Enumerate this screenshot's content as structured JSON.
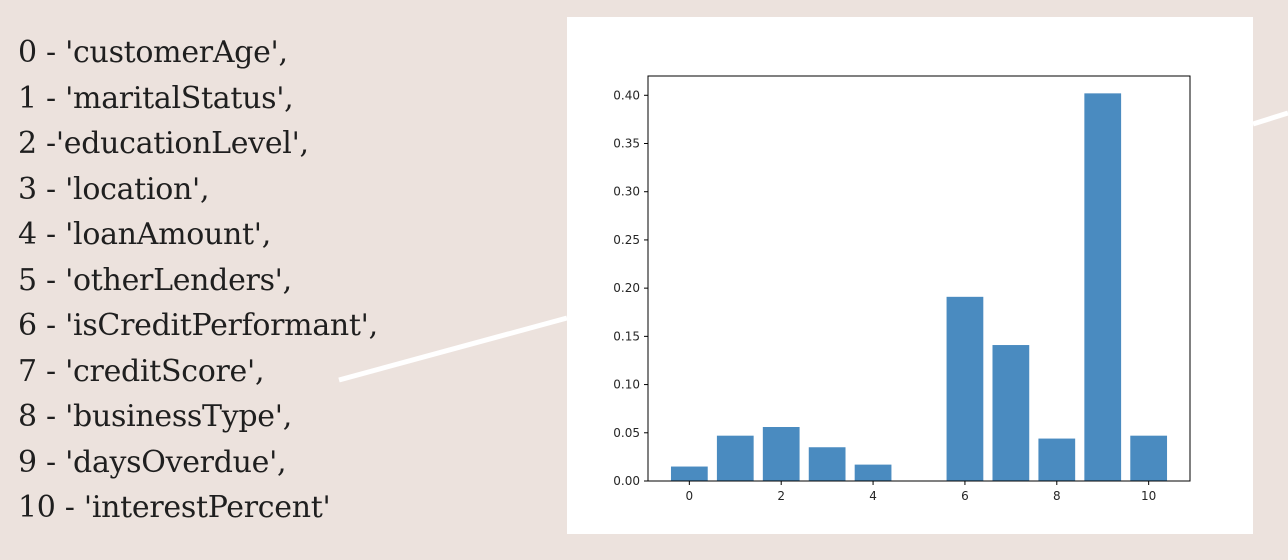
{
  "features": [
    "0 - 'customerAge',",
    "1 - 'maritalStatus',",
    "2 -'educationLevel',",
    "3 - 'location',",
    "4 - 'loanAmount',",
    "5 - 'otherLenders',",
    "6 - 'isCreditPerformant',",
    "7 - 'creditScore',",
    "8 - 'businessType',",
    "9 - 'daysOverdue',",
    "10 - 'interestPercent'"
  ],
  "colors": {
    "background": "#ece2dd",
    "card": "#ffffff",
    "bar": "#4a8bc0",
    "connector": "#ffffff"
  },
  "chart_data": {
    "type": "bar",
    "categories": [
      0,
      1,
      2,
      3,
      4,
      5,
      6,
      7,
      8,
      9,
      10
    ],
    "values": [
      0.015,
      0.047,
      0.056,
      0.035,
      0.017,
      0.0,
      0.191,
      0.141,
      0.044,
      0.402,
      0.047
    ],
    "xlim": [
      -0.9,
      10.9
    ],
    "ylim": [
      0,
      0.42
    ],
    "xticks": [
      0,
      2,
      4,
      6,
      8,
      10
    ],
    "yticks": [
      0.0,
      0.05,
      0.1,
      0.15,
      0.2,
      0.25,
      0.3,
      0.35,
      0.4
    ],
    "ytick_labels": [
      "0.00",
      "0.05",
      "0.10",
      "0.15",
      "0.20",
      "0.25",
      "0.30",
      "0.35",
      "0.40"
    ],
    "title": "",
    "xlabel": "",
    "ylabel": "",
    "grid": false,
    "legend": false
  }
}
